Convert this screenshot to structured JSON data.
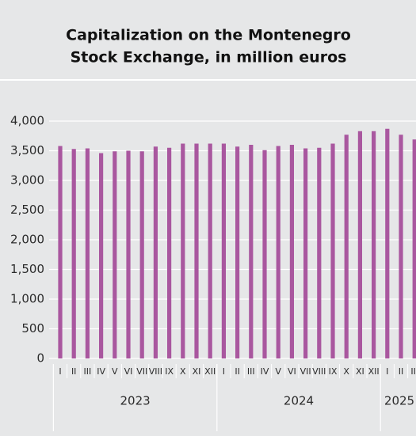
{
  "chart_data": {
    "type": "bar",
    "title": [
      "Capitalization on the Montenegro",
      "Stock Exchange, in million euros"
    ],
    "color": "#a9579f",
    "ylim": [
      0,
      4000
    ],
    "yticks": [
      0,
      500,
      {
        "value": 1000,
        "label": "1,000"
      },
      {
        "value": 1500,
        "label": "1,500"
      },
      {
        "value": 2000,
        "label": "2,000"
      },
      {
        "value": 2500,
        "label": "2,500"
      },
      {
        "value": 3000,
        "label": "3,000"
      },
      {
        "value": 3500,
        "label": "3,500"
      },
      {
        "value": 4000,
        "label": "4,000"
      }
    ],
    "grid": true,
    "groups": [
      {
        "name": "2023",
        "categories": [
          "I",
          "II",
          "III",
          "IV",
          "V",
          "VI",
          "VII",
          "VIII",
          "IX",
          "X",
          "XI",
          "XII"
        ],
        "values": [
          3580,
          3530,
          3540,
          3460,
          3490,
          3500,
          3490,
          3570,
          3550,
          3620,
          3620,
          3620
        ]
      },
      {
        "name": "2024",
        "categories": [
          "I",
          "II",
          "III",
          "IV",
          "V",
          "VI",
          "VII",
          "VIII",
          "IX",
          "X",
          "XI",
          "XII"
        ],
        "values": [
          3620,
          3570,
          3600,
          3510,
          3580,
          3600,
          3540,
          3550,
          3620,
          3770,
          3830,
          3830
        ]
      },
      {
        "name": "2025",
        "categories": [
          "I",
          "II",
          "III"
        ],
        "values": [
          3870,
          3770,
          3690
        ]
      }
    ]
  }
}
